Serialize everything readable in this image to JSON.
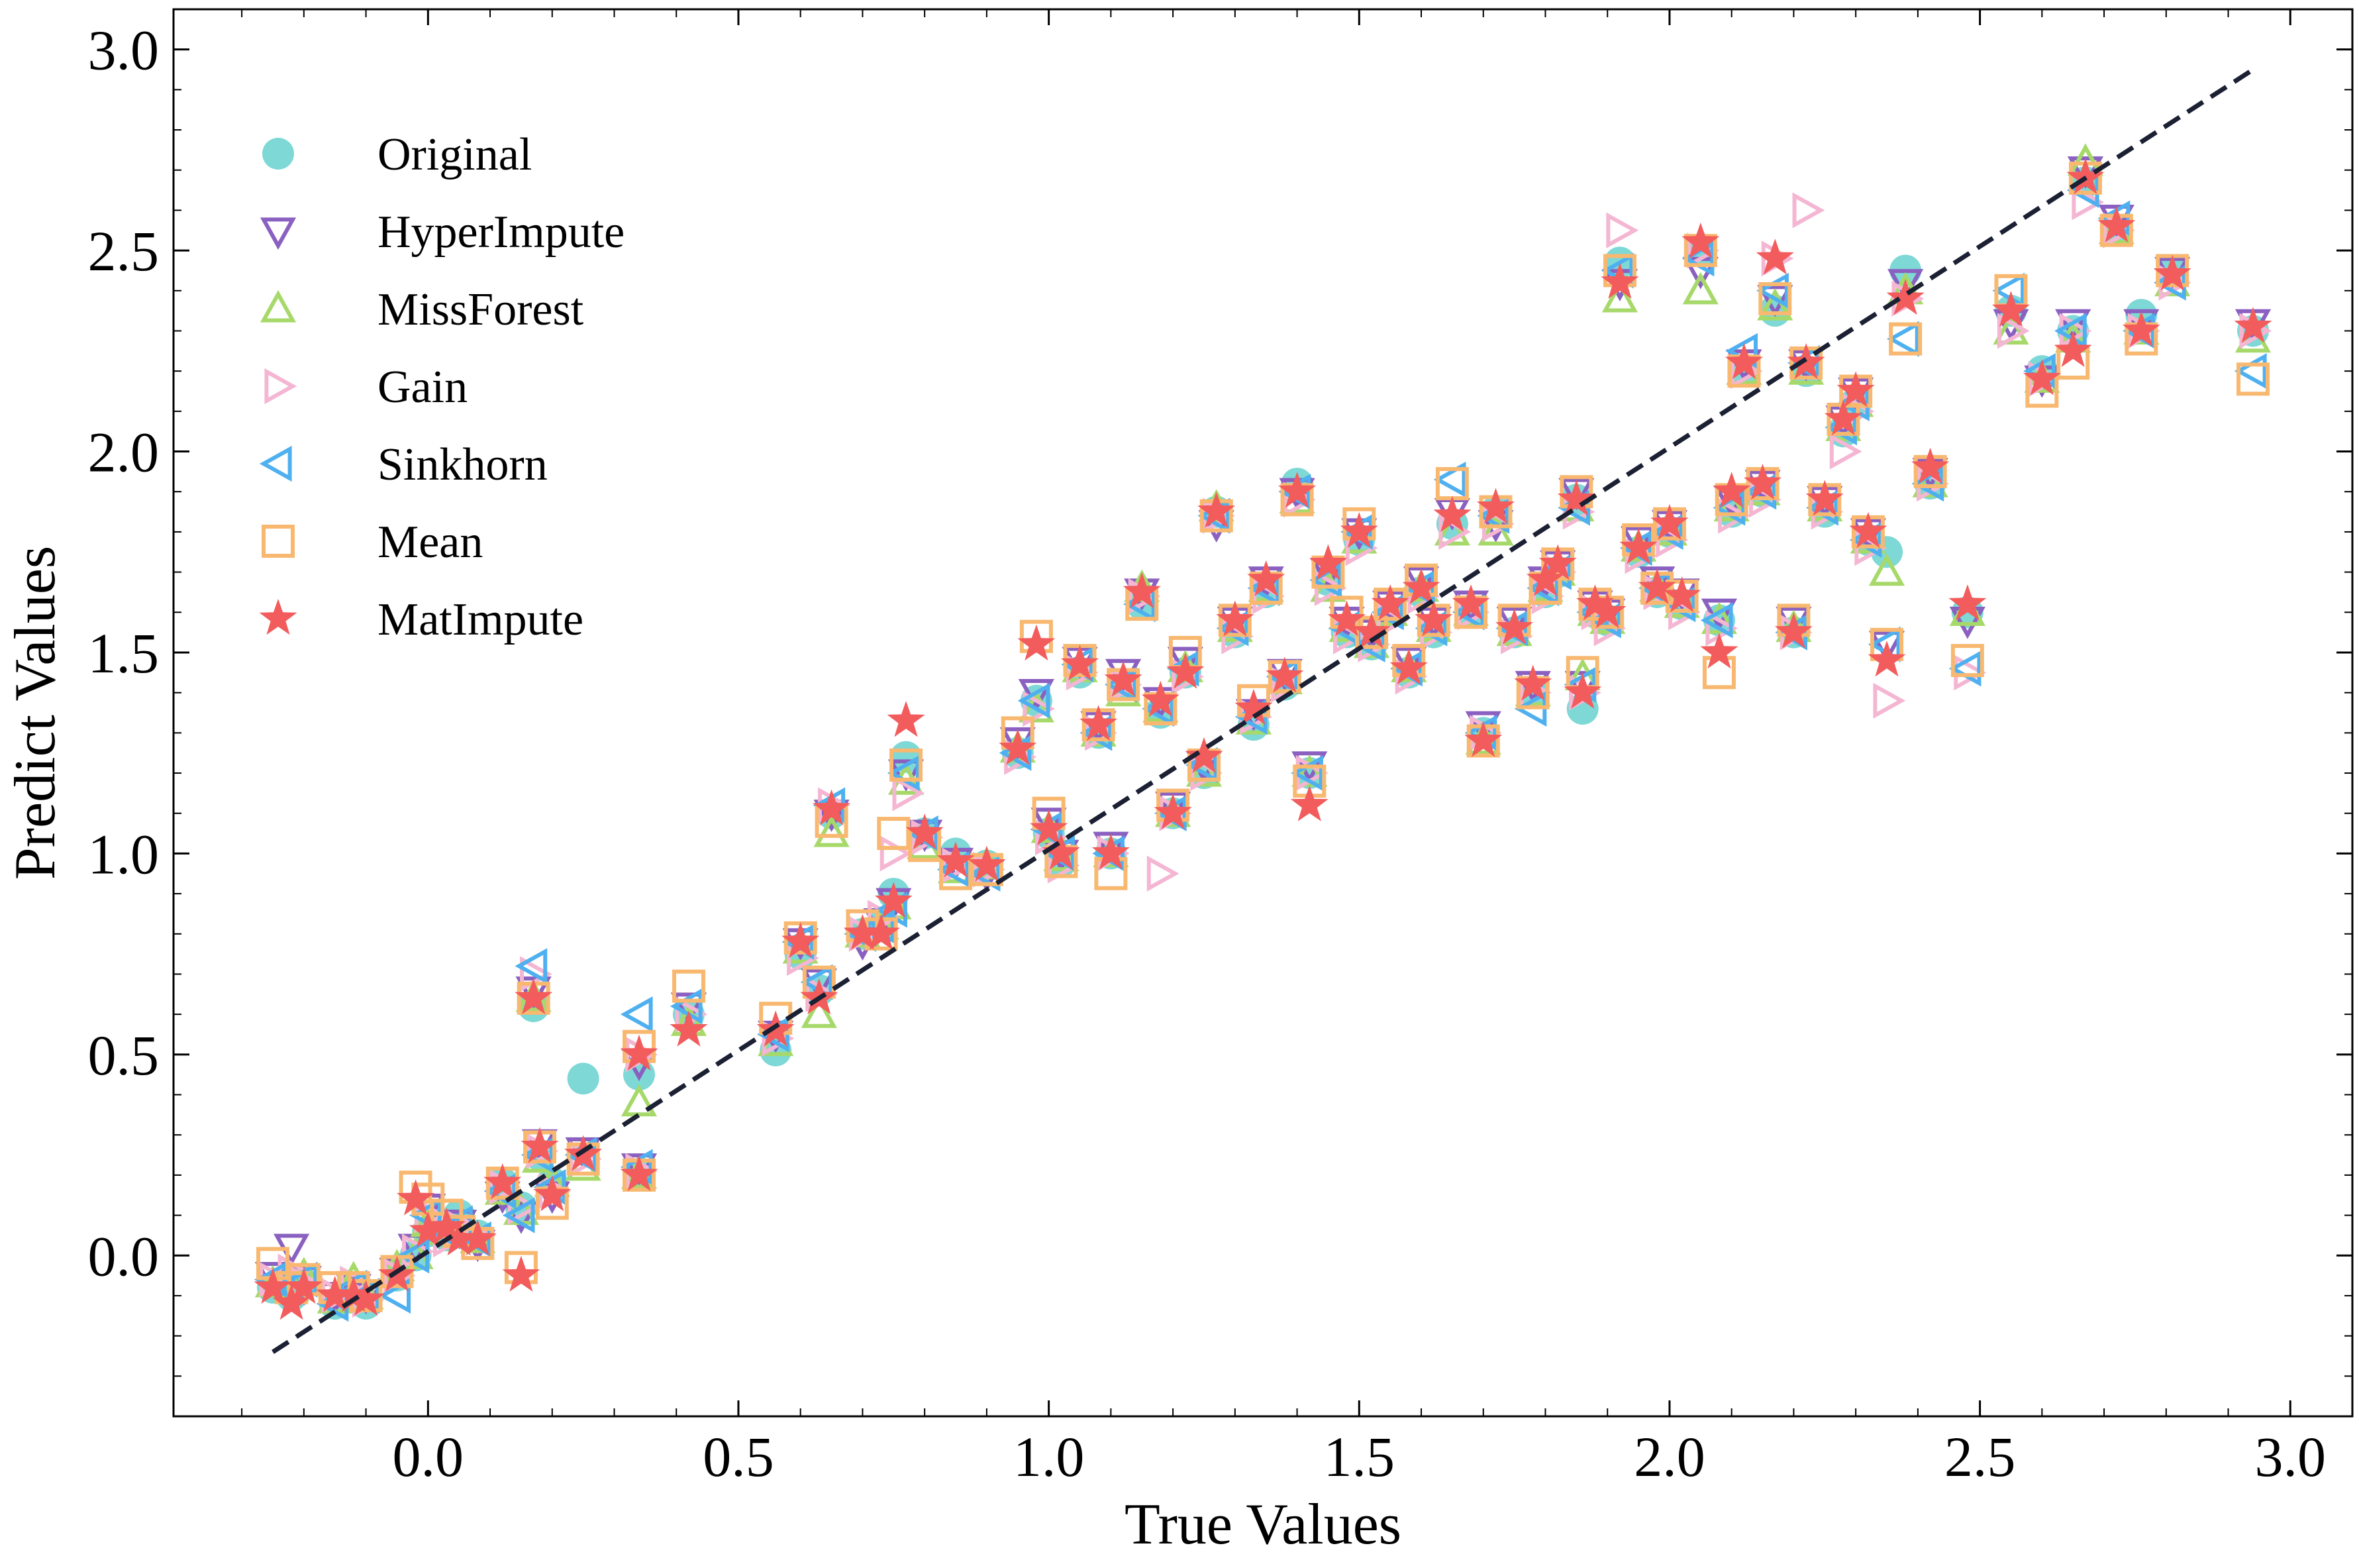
{
  "chart_data": {
    "type": "scatter",
    "xlabel": "True Values",
    "ylabel": "Predict Values",
    "xlim": [
      -0.41,
      3.1
    ],
    "ylim": [
      -0.4,
      3.1
    ],
    "xticks": [
      "0.0",
      "0.5",
      "1.0",
      "1.5",
      "2.0",
      "2.5",
      "3.0"
    ],
    "yticks": [
      "0.0",
      "0.5",
      "1.0",
      "1.5",
      "2.0",
      "2.5",
      "3.0"
    ],
    "legend_position": "top-left",
    "grid": false,
    "reference_line": {
      "style": "dashed",
      "color": "#1b2033",
      "from": [
        -0.25,
        -0.24
      ],
      "to": [
        2.94,
        2.95
      ]
    },
    "x": [
      -0.25,
      -0.22,
      -0.2,
      -0.15,
      -0.12,
      -0.1,
      -0.05,
      -0.02,
      0.0,
      0.03,
      0.05,
      0.08,
      0.12,
      0.15,
      0.17,
      0.18,
      0.2,
      0.25,
      0.34,
      0.34,
      0.42,
      0.56,
      0.6,
      0.63,
      0.65,
      0.7,
      0.73,
      0.75,
      0.77,
      0.8,
      0.85,
      0.9,
      0.95,
      0.98,
      1.0,
      1.02,
      1.05,
      1.08,
      1.1,
      1.12,
      1.15,
      1.18,
      1.2,
      1.22,
      1.25,
      1.27,
      1.3,
      1.33,
      1.35,
      1.38,
      1.4,
      1.42,
      1.45,
      1.48,
      1.5,
      1.52,
      1.55,
      1.58,
      1.6,
      1.62,
      1.65,
      1.68,
      1.7,
      1.72,
      1.75,
      1.78,
      1.8,
      1.82,
      1.85,
      1.86,
      1.88,
      1.9,
      1.92,
      1.95,
      1.98,
      2.0,
      2.02,
      2.05,
      2.08,
      2.1,
      2.12,
      2.15,
      2.17,
      2.2,
      2.22,
      2.25,
      2.28,
      2.3,
      2.32,
      2.35,
      2.38,
      2.42,
      2.48,
      2.55,
      2.6,
      2.65,
      2.67,
      2.72,
      2.76,
      2.81,
      2.94
    ],
    "series": [
      {
        "name": "Original",
        "marker": "circle",
        "color": "#7dd8d6",
        "values": [
          -0.08,
          -0.1,
          -0.07,
          -0.12,
          -0.08,
          -0.12,
          -0.05,
          0.0,
          0.06,
          0.05,
          0.1,
          0.05,
          0.18,
          0.12,
          0.62,
          0.25,
          0.18,
          0.44,
          0.2,
          0.45,
          0.6,
          0.51,
          0.75,
          0.66,
          1.1,
          0.8,
          0.82,
          0.9,
          1.24,
          1.05,
          1.0,
          0.97,
          1.25,
          1.38,
          1.05,
          0.98,
          1.45,
          1.3,
          1.0,
          1.42,
          1.62,
          1.35,
          1.1,
          1.45,
          1.2,
          1.85,
          1.55,
          1.32,
          1.65,
          1.42,
          1.92,
          1.2,
          1.68,
          1.55,
          1.78,
          1.52,
          1.6,
          1.45,
          1.65,
          1.55,
          1.82,
          1.6,
          1.3,
          1.85,
          1.55,
          1.4,
          1.65,
          1.7,
          1.88,
          1.36,
          1.6,
          1.58,
          2.47,
          1.75,
          1.65,
          1.8,
          1.62,
          2.5,
          1.58,
          1.85,
          2.2,
          1.9,
          2.35,
          1.55,
          2.2,
          1.85,
          2.05,
          2.12,
          1.78,
          1.75,
          2.45,
          1.92,
          1.6,
          2.35,
          2.2,
          2.3,
          2.67,
          2.55,
          2.34,
          2.45,
          2.3
        ]
      },
      {
        "name": "HyperImpute",
        "marker": "triangle-down",
        "color": "#8a60c0",
        "values": [
          -0.05,
          0.02,
          -0.06,
          -0.1,
          -0.08,
          -0.1,
          -0.04,
          0.02,
          0.12,
          0.08,
          0.08,
          0.03,
          0.15,
          0.1,
          0.66,
          0.28,
          0.15,
          0.26,
          0.22,
          0.48,
          0.62,
          0.55,
          0.78,
          0.68,
          1.1,
          0.78,
          0.83,
          0.88,
          1.2,
          1.05,
          0.98,
          0.95,
          1.28,
          1.4,
          1.08,
          1.0,
          1.48,
          1.32,
          1.02,
          1.45,
          1.65,
          1.38,
          1.12,
          1.48,
          1.22,
          1.82,
          1.58,
          1.35,
          1.68,
          1.45,
          1.9,
          1.22,
          1.7,
          1.58,
          1.8,
          1.55,
          1.62,
          1.48,
          1.68,
          1.58,
          1.85,
          1.62,
          1.32,
          1.82,
          1.58,
          1.42,
          1.68,
          1.72,
          1.9,
          1.42,
          1.62,
          1.6,
          2.42,
          1.78,
          1.68,
          1.82,
          1.65,
          2.45,
          1.6,
          1.88,
          2.22,
          1.92,
          2.38,
          1.58,
          2.22,
          1.88,
          2.08,
          2.15,
          1.8,
          1.52,
          2.42,
          1.95,
          1.58,
          2.32,
          2.18,
          2.32,
          2.7,
          2.58,
          2.32,
          2.45,
          2.32
        ]
      },
      {
        "name": "MissForest",
        "marker": "triangle-up",
        "color": "#a6d96a",
        "values": [
          -0.07,
          -0.08,
          -0.05,
          -0.11,
          -0.06,
          -0.1,
          -0.03,
          0.0,
          0.08,
          0.06,
          0.06,
          0.04,
          0.16,
          0.11,
          0.64,
          0.24,
          0.18,
          0.22,
          0.2,
          0.38,
          0.58,
          0.53,
          0.76,
          0.6,
          1.05,
          0.8,
          0.82,
          0.87,
          1.18,
          1.02,
          0.96,
          0.97,
          1.26,
          1.36,
          1.06,
          0.99,
          1.46,
          1.3,
          1.0,
          1.4,
          1.66,
          1.36,
          1.1,
          1.46,
          1.2,
          1.86,
          1.56,
          1.33,
          1.66,
          1.43,
          1.88,
          1.2,
          1.66,
          1.56,
          1.78,
          1.52,
          1.6,
          1.46,
          1.66,
          1.56,
          1.8,
          1.6,
          1.28,
          1.8,
          1.55,
          1.4,
          1.66,
          1.7,
          1.86,
          1.44,
          1.6,
          1.58,
          2.38,
          1.76,
          1.66,
          1.8,
          1.62,
          2.4,
          1.58,
          1.86,
          2.2,
          1.9,
          2.36,
          1.56,
          2.2,
          1.86,
          2.06,
          2.12,
          1.78,
          1.7,
          2.4,
          1.92,
          1.6,
          2.3,
          2.18,
          2.28,
          2.72,
          2.55,
          2.3,
          2.42,
          2.28
        ]
      },
      {
        "name": "Gain",
        "marker": "triangle-right",
        "color": "#f4b6d2",
        "values": [
          -0.06,
          -0.04,
          -0.07,
          -0.1,
          -0.07,
          -0.11,
          -0.05,
          0.01,
          0.1,
          0.04,
          0.07,
          0.05,
          0.17,
          0.12,
          0.7,
          0.26,
          0.16,
          0.24,
          0.21,
          0.5,
          0.6,
          0.54,
          0.74,
          0.65,
          1.12,
          0.8,
          0.84,
          1.0,
          1.15,
          1.04,
          0.97,
          0.96,
          1.24,
          1.36,
          1.04,
          0.97,
          1.45,
          1.3,
          1.0,
          1.42,
          1.64,
          0.95,
          1.1,
          1.44,
          1.2,
          1.84,
          1.54,
          1.34,
          1.64,
          1.42,
          1.88,
          1.2,
          1.66,
          1.54,
          1.76,
          1.52,
          1.58,
          1.44,
          1.64,
          1.55,
          1.8,
          1.6,
          1.3,
          1.82,
          1.54,
          1.4,
          1.64,
          1.7,
          1.85,
          1.4,
          1.6,
          1.56,
          2.55,
          1.74,
          1.65,
          1.78,
          1.6,
          2.5,
          1.56,
          1.84,
          2.2,
          1.88,
          2.48,
          1.55,
          2.6,
          1.85,
          2.0,
          2.1,
          1.76,
          1.38,
          2.38,
          1.92,
          1.45,
          2.3,
          2.18,
          2.3,
          2.62,
          2.55,
          2.3,
          2.42,
          2.3
        ]
      },
      {
        "name": "Sinkhorn",
        "marker": "triangle-left",
        "color": "#4fb0f0",
        "values": [
          -0.06,
          -0.08,
          -0.06,
          -0.12,
          -0.08,
          -0.1,
          -0.1,
          0.0,
          0.1,
          0.06,
          0.08,
          0.04,
          0.16,
          0.1,
          0.72,
          0.25,
          0.17,
          0.25,
          0.22,
          0.6,
          0.62,
          0.55,
          0.78,
          0.68,
          1.12,
          0.8,
          0.82,
          0.86,
          1.2,
          1.05,
          0.96,
          0.95,
          1.25,
          1.38,
          1.06,
          1.0,
          1.47,
          1.3,
          1.0,
          1.42,
          1.62,
          1.36,
          1.1,
          1.46,
          1.22,
          1.84,
          1.56,
          1.34,
          1.66,
          1.44,
          1.9,
          1.2,
          1.68,
          1.56,
          1.8,
          1.52,
          1.6,
          1.46,
          1.66,
          1.56,
          1.93,
          1.6,
          1.3,
          1.84,
          1.56,
          1.36,
          1.66,
          1.7,
          1.86,
          1.42,
          1.6,
          1.58,
          2.45,
          1.76,
          1.66,
          1.8,
          1.62,
          2.48,
          1.58,
          1.86,
          2.25,
          1.9,
          2.4,
          1.55,
          2.22,
          1.86,
          2.06,
          2.12,
          1.78,
          1.52,
          2.28,
          1.92,
          1.46,
          2.4,
          2.2,
          2.3,
          2.65,
          2.58,
          2.3,
          2.42,
          2.2
        ]
      },
      {
        "name": "Mean",
        "marker": "square",
        "color": "#f8b870",
        "values": [
          -0.02,
          -0.08,
          -0.06,
          -0.08,
          -0.08,
          -0.1,
          -0.04,
          0.17,
          0.14,
          0.1,
          0.06,
          0.03,
          0.18,
          -0.03,
          0.64,
          0.27,
          0.13,
          0.24,
          0.2,
          0.52,
          0.67,
          0.59,
          0.79,
          0.68,
          1.08,
          0.82,
          0.8,
          1.05,
          1.22,
          1.02,
          0.95,
          0.96,
          1.3,
          1.54,
          1.1,
          0.98,
          1.48,
          1.32,
          0.95,
          1.42,
          1.62,
          1.36,
          1.12,
          1.5,
          1.22,
          1.84,
          1.58,
          1.38,
          1.66,
          1.44,
          1.88,
          1.18,
          1.7,
          1.6,
          1.82,
          1.55,
          1.62,
          1.48,
          1.68,
          1.58,
          1.92,
          1.6,
          1.28,
          1.85,
          1.58,
          1.4,
          1.66,
          1.72,
          1.9,
          1.45,
          1.62,
          1.6,
          2.45,
          1.78,
          1.66,
          1.82,
          1.64,
          2.5,
          1.45,
          1.88,
          2.2,
          1.92,
          2.38,
          1.58,
          2.22,
          1.88,
          2.08,
          2.15,
          1.8,
          1.52,
          2.28,
          1.95,
          1.48,
          2.4,
          2.15,
          2.22,
          2.68,
          2.55,
          2.28,
          2.45,
          2.18
        ]
      },
      {
        "name": "MatImpute",
        "marker": "star",
        "color": "#f25c5c",
        "values": [
          -0.08,
          -0.12,
          -0.08,
          -0.1,
          -0.1,
          -0.11,
          -0.05,
          0.14,
          0.06,
          0.07,
          0.04,
          0.04,
          0.18,
          -0.05,
          0.64,
          0.27,
          0.15,
          0.25,
          0.2,
          0.5,
          0.56,
          0.56,
          0.78,
          0.64,
          1.11,
          0.8,
          0.8,
          0.88,
          1.33,
          1.05,
          0.98,
          0.97,
          1.26,
          1.52,
          1.06,
          1.0,
          1.47,
          1.32,
          1.0,
          1.43,
          1.65,
          1.38,
          1.1,
          1.45,
          1.24,
          1.85,
          1.58,
          1.36,
          1.68,
          1.44,
          1.9,
          1.12,
          1.72,
          1.58,
          1.8,
          1.55,
          1.62,
          1.46,
          1.66,
          1.58,
          1.84,
          1.62,
          1.28,
          1.86,
          1.56,
          1.42,
          1.68,
          1.72,
          1.88,
          1.4,
          1.62,
          1.6,
          2.42,
          1.76,
          1.66,
          1.82,
          1.64,
          2.52,
          1.5,
          1.9,
          2.22,
          1.92,
          2.48,
          1.55,
          2.22,
          1.88,
          2.08,
          2.15,
          1.8,
          1.48,
          2.38,
          1.96,
          1.62,
          2.35,
          2.18,
          2.25,
          2.68,
          2.56,
          2.3,
          2.44,
          2.31
        ]
      }
    ]
  }
}
